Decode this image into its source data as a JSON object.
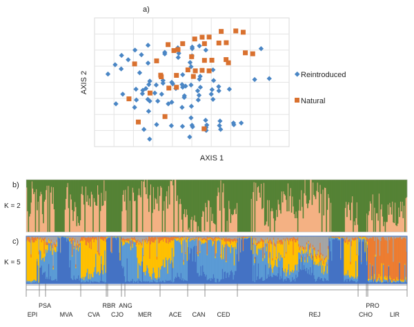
{
  "panel_labels": {
    "a": "a)",
    "b": "b)",
    "c": "c)"
  },
  "k_labels": {
    "k2": "K = 2",
    "k5": "K = 5"
  },
  "colors": {
    "reintroduced": "#4A86C5",
    "natural": "#D9712F",
    "k2": [
      "#548235",
      "#F4B183"
    ],
    "k5": [
      "#4472C4",
      "#5B9BD5",
      "#FFC000",
      "#ED7D31",
      "#A5A5A5"
    ]
  },
  "chart_data": [
    {
      "type": "scatter",
      "xlabel": "AXIS 1",
      "ylabel": "AXIS 2",
      "xlim": [
        0,
        10
      ],
      "ylim": [
        0,
        8
      ],
      "grid": true,
      "tick_labels": false,
      "legend_position": "right",
      "series": [
        {
          "name": "Reintroduced",
          "marker": "diamond",
          "points": [
            [
              0.69,
              4.51
            ],
            [
              1.06,
              5.09
            ],
            [
              1.39,
              5.67
            ],
            [
              1.37,
              4.83
            ],
            [
              1.73,
              5.4
            ],
            [
              2.08,
              6.0
            ],
            [
              2.41,
              5.71
            ],
            [
              2.32,
              4.59
            ],
            [
              2.75,
              6.3
            ],
            [
              2.75,
              5.19
            ],
            [
              3.61,
              5.86
            ],
            [
              3.61,
              5.76
            ],
            [
              4.28,
              6.14
            ],
            [
              4.33,
              5.8
            ],
            [
              4.3,
              5.54
            ],
            [
              5.02,
              6.19
            ],
            [
              5.02,
              6.09
            ],
            [
              5.01,
              5.64
            ],
            [
              4.91,
              5.23
            ],
            [
              4.96,
              4.97
            ],
            [
              5.39,
              6.26
            ],
            [
              5.72,
              6.0
            ],
            [
              6.09,
              4.77
            ],
            [
              8.56,
              6.09
            ],
            [
              8.23,
              4.17
            ],
            [
              8.98,
              4.23
            ],
            [
              1.45,
              3.26
            ],
            [
              1.1,
              2.66
            ],
            [
              2.13,
              3.57
            ],
            [
              2.15,
              2.9
            ],
            [
              2.06,
              2.44
            ],
            [
              2.48,
              3.5
            ],
            [
              2.46,
              3.29
            ],
            [
              2.64,
              3.61
            ],
            [
              2.84,
              4.07
            ],
            [
              2.79,
              3.86
            ],
            [
              2.74,
              2.94
            ],
            [
              2.84,
              2.83
            ],
            [
              2.78,
              2.2
            ],
            [
              3.17,
              3.83
            ],
            [
              3.1,
              3.33
            ],
            [
              3.25,
              2.83
            ],
            [
              3.45,
              3.26
            ],
            [
              3.52,
              4.11
            ],
            [
              3.52,
              3.94
            ],
            [
              3.79,
              2.66
            ],
            [
              3.97,
              2.76
            ],
            [
              3.97,
              4.0
            ],
            [
              4.02,
              3.9
            ],
            [
              4.18,
              3.61
            ],
            [
              4.53,
              4.47
            ],
            [
              4.5,
              3.86
            ],
            [
              4.53,
              3.69
            ],
            [
              4.68,
              3.76
            ],
            [
              4.62,
              3.16
            ],
            [
              4.61,
              3.06
            ],
            [
              4.5,
              2.44
            ],
            [
              4.96,
              3.83
            ],
            [
              4.98,
              2.51
            ],
            [
              5.3,
              3.47
            ],
            [
              5.43,
              4.37
            ],
            [
              5.39,
              4.19
            ],
            [
              5.44,
              3.69
            ],
            [
              5.37,
              3.19
            ],
            [
              5.33,
              2.9
            ],
            [
              6.12,
              4.11
            ],
            [
              6.04,
              3.54
            ],
            [
              6.0,
              3.26
            ],
            [
              6.09,
              2.94
            ],
            [
              6.38,
              3.73
            ],
            [
              6.39,
              3.47
            ],
            [
              6.93,
              3.57
            ],
            [
              4.96,
              1.79
            ],
            [
              5.01,
              1.33
            ],
            [
              5.04,
              1.23
            ],
            [
              5.71,
              1.64
            ],
            [
              5.77,
              1.34
            ],
            [
              5.74,
              1.01
            ],
            [
              6.45,
              1.59
            ],
            [
              6.42,
              1.31
            ],
            [
              6.48,
              1.07
            ],
            [
              7.14,
              1.47
            ],
            [
              7.16,
              1.36
            ],
            [
              7.54,
              1.47
            ],
            [
              3.19,
              1.37
            ],
            [
              3.95,
              1.3
            ],
            [
              4.52,
              1.26
            ],
            [
              2.54,
              1.07
            ],
            [
              2.83,
              0.47
            ],
            [
              4.89,
              0.6
            ],
            [
              5.73,
              1.19
            ]
          ]
        },
        {
          "name": "Natural",
          "marker": "square",
          "points": [
            [
              2.06,
              5.14
            ],
            [
              1.77,
              2.97
            ],
            [
              2.25,
              1.53
            ],
            [
              2.85,
              3.33
            ],
            [
              3.19,
              5.33
            ],
            [
              3.4,
              4.44
            ],
            [
              3.43,
              4.34
            ],
            [
              3.62,
              1.87
            ],
            [
              3.78,
              6.34
            ],
            [
              3.82,
              3.64
            ],
            [
              4.08,
              5.97
            ],
            [
              4.29,
              6.03
            ],
            [
              4.21,
              4.43
            ],
            [
              4.21,
              3.69
            ],
            [
              4.53,
              6.4
            ],
            [
              4.99,
              5.59
            ],
            [
              4.8,
              4.77
            ],
            [
              5.18,
              4.71
            ],
            [
              5.08,
              4.36
            ],
            [
              5.15,
              6.69
            ],
            [
              5.53,
              6.8
            ],
            [
              5.89,
              6.81
            ],
            [
              5.65,
              6.4
            ],
            [
              5.65,
              5.36
            ],
            [
              6.03,
              5.37
            ],
            [
              5.53,
              4.74
            ],
            [
              5.89,
              4.71
            ],
            [
              5.63,
              1.11
            ],
            [
              6.39,
              6.44
            ],
            [
              6.77,
              6.46
            ],
            [
              6.51,
              7.16
            ],
            [
              7.26,
              7.19
            ],
            [
              7.64,
              7.11
            ],
            [
              6.76,
              5.41
            ],
            [
              6.88,
              5.21
            ],
            [
              7.75,
              5.83
            ],
            [
              8.13,
              5.77
            ]
          ]
        }
      ]
    },
    {
      "type": "bar",
      "stacked": true,
      "description_label": "K = 2",
      "populations": [
        {
          "name": "EPI",
          "k2_green": [
            0.45,
            0.3,
            0.35
          ],
          "k5": [
            [
              0.02,
              0.05,
              0.8,
              0.1,
              0.03
            ]
          ]
        },
        {
          "name": "PSA",
          "k2_green": [
            0.5,
            0.6
          ],
          "k5": [
            [
              0.3,
              0.3,
              0.3,
              0.05,
              0.05
            ]
          ]
        },
        {
          "name": "MVA",
          "k2_green": [
            0.4,
            1.0,
            0.3,
            0.7
          ],
          "k5": [
            [
              0.1,
              0.6,
              0.1,
              0.05,
              0.15
            ],
            [
              0.95,
              0.03,
              0.01,
              0.0,
              0.01
            ],
            [
              0.1,
              0.7,
              0.05,
              0.05,
              0.1
            ]
          ]
        },
        {
          "name": "CVA",
          "k2_green": [
            0.25,
            0.4,
            0.3
          ],
          "k5": [
            [
              0.03,
              0.1,
              0.75,
              0.1,
              0.02
            ],
            [
              0.05,
              0.3,
              0.55,
              0.08,
              0.02
            ]
          ]
        },
        {
          "name": "RBR",
          "k2_green": [
            1.0
          ],
          "k5": [
            [
              0.95,
              0.02,
              0.02,
              0.0,
              0.01
            ]
          ]
        },
        {
          "name": "CJO",
          "k2_green": [
            1.0
          ],
          "k5": [
            [
              0.96,
              0.02,
              0.01,
              0.0,
              0.01
            ]
          ]
        },
        {
          "name": "ANG",
          "k2_green": [
            0.5
          ],
          "k5": [
            [
              0.3,
              0.5,
              0.1,
              0.05,
              0.05
            ]
          ]
        },
        {
          "name": "MER",
          "k2_green": [
            0.4,
            0.2,
            0.35
          ],
          "k5": [
            [
              0.05,
              0.8,
              0.05,
              0.05,
              0.05
            ],
            [
              0.05,
              0.3,
              0.5,
              0.05,
              0.1
            ],
            [
              0.05,
              0.15,
              0.7,
              0.08,
              0.02
            ]
          ]
        },
        {
          "name": "ACE",
          "k2_green": [
            0.3,
            0.15,
            0.6
          ],
          "k5": [
            [
              0.05,
              0.3,
              0.55,
              0.08,
              0.02
            ],
            [
              0.1,
              0.8,
              0.05,
              0.03,
              0.02
            ]
          ]
        },
        {
          "name": "CAN",
          "k2_green": [
            0.9,
            0.7
          ],
          "k5": [
            [
              0.7,
              0.2,
              0.03,
              0.02,
              0.05
            ],
            [
              0.3,
              0.6,
              0.05,
              0.02,
              0.03
            ]
          ]
        },
        {
          "name": "CED",
          "k2_green": [
            0.6,
            0.3,
            0.7
          ],
          "k5": [
            [
              0.1,
              0.8,
              0.04,
              0.03,
              0.03
            ],
            [
              0.2,
              0.6,
              0.1,
              0.05,
              0.05
            ]
          ]
        },
        {
          "name": "REJ",
          "k2_green": [
            1.0,
            0.3,
            0.6,
            0.35,
            0.5,
            0.25,
            0.4,
            1.0,
            0.6
          ],
          "k5": [
            [
              0.95,
              0.02,
              0.01,
              0.01,
              0.01
            ],
            [
              0.1,
              0.6,
              0.15,
              0.05,
              0.1
            ],
            [
              0.2,
              0.3,
              0.35,
              0.05,
              0.1
            ],
            [
              0.1,
              0.2,
              0.6,
              0.05,
              0.05
            ],
            [
              0.3,
              0.3,
              0.1,
              0.05,
              0.25
            ],
            [
              0.1,
              0.3,
              0.2,
              0.05,
              0.35
            ],
            [
              0.95,
              0.02,
              0.01,
              0.01,
              0.01
            ],
            [
              0.05,
              0.1,
              0.75,
              0.05,
              0.05
            ]
          ]
        },
        {
          "name": "CHO",
          "k2_green": [
            1.0
          ],
          "k5": [
            [
              0.9,
              0.05,
              0.03,
              0.01,
              0.01
            ]
          ]
        },
        {
          "name": "PRO",
          "k2_green": [
            0.9
          ],
          "k5": [
            [
              0.7,
              0.1,
              0.05,
              0.1,
              0.05
            ]
          ]
        },
        {
          "name": "LIR",
          "k2_green": [
            0.55,
            0.7,
            0.6
          ],
          "k5": [
            [
              0.03,
              0.03,
              0.04,
              0.85,
              0.05
            ]
          ]
        }
      ]
    }
  ]
}
